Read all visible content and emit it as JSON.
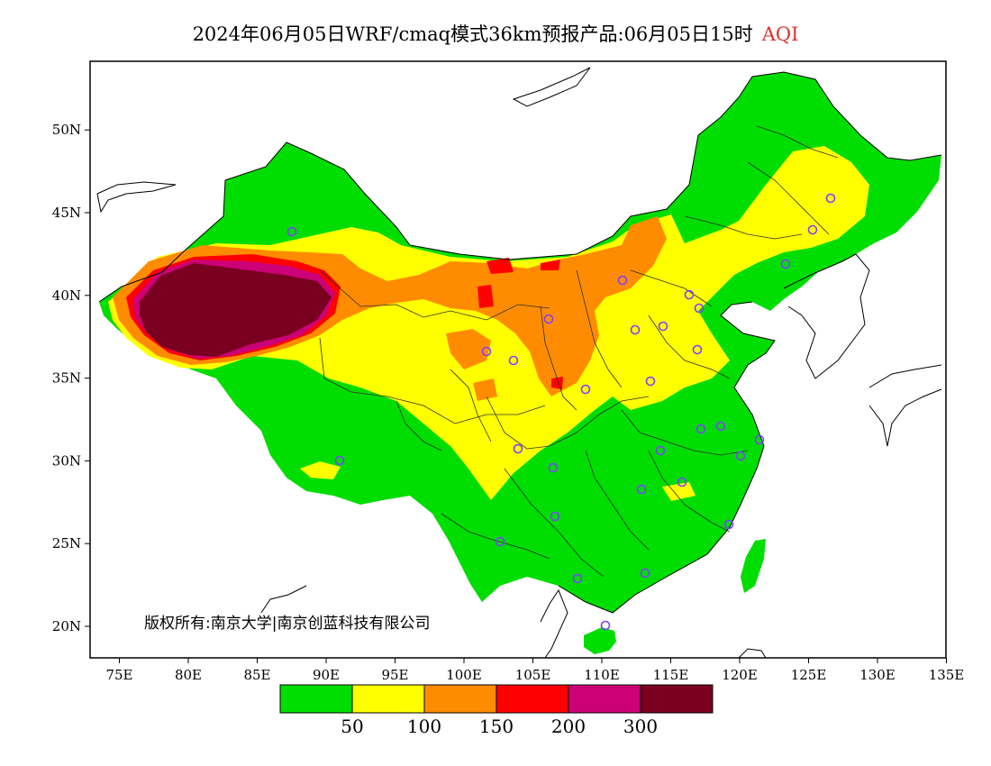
{
  "title": {
    "main": "2024年06月05日WRF/cmaq模式36km预报产品:06月05日15时",
    "variable": "AQI"
  },
  "map": {
    "lon_ticks": [
      "75E",
      "80E",
      "85E",
      "90E",
      "95E",
      "100E",
      "105E",
      "110E",
      "115E",
      "120E",
      "125E",
      "130E",
      "135E"
    ],
    "lat_ticks": [
      "20N",
      "25N",
      "30N",
      "35N",
      "40N",
      "45N",
      "50N"
    ],
    "copyright": "版权所有:南京大学|南京创蓝科技有限公司"
  },
  "legend": {
    "colors": [
      "#00dd00",
      "#ffff00",
      "#ff8c00",
      "#ff0000",
      "#cc0077",
      "#7a0020"
    ],
    "breaks": [
      "50",
      "100",
      "150",
      "200",
      "300"
    ]
  },
  "stations_marker": "circle"
}
